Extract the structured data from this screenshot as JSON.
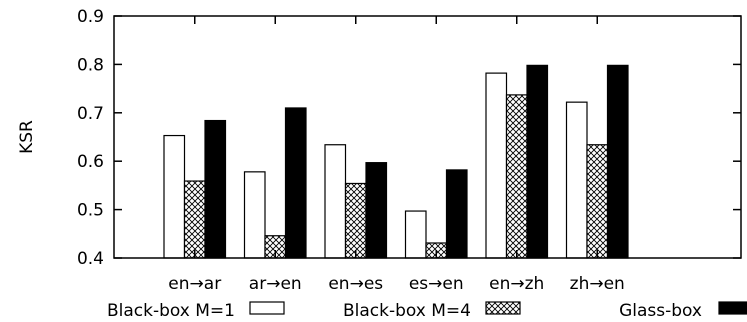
{
  "chart_data": {
    "type": "bar",
    "title": "",
    "xlabel": "",
    "ylabel": "KSR",
    "ylim": [
      0.4,
      0.9
    ],
    "yticks": [
      0.4,
      0.5,
      0.6,
      0.7,
      0.8,
      0.9
    ],
    "ytick_labels": [
      "0.4",
      "0.5",
      "0.6",
      "0.7",
      "0.8",
      "0.9"
    ],
    "grid": false,
    "legend_position": "bottom",
    "categories": [
      "en→ar",
      "ar→en",
      "en→es",
      "es→en",
      "en→zh",
      "zh→en"
    ],
    "series": [
      {
        "name": "Black-box M=1",
        "fill": "white",
        "values": [
          0.653,
          0.578,
          0.634,
          0.497,
          0.782,
          0.722
        ]
      },
      {
        "name": "Black-box M=4",
        "fill": "crosshatch",
        "values": [
          0.559,
          0.446,
          0.554,
          0.431,
          0.737,
          0.634
        ]
      },
      {
        "name": "Glass-box",
        "fill": "black",
        "values": [
          0.684,
          0.71,
          0.597,
          0.582,
          0.798,
          0.798
        ]
      }
    ]
  }
}
